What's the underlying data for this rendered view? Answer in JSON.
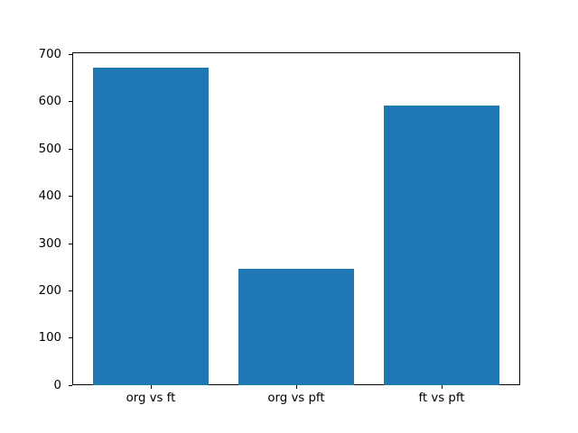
{
  "chart_data": {
    "type": "bar",
    "title": "",
    "xlabel": "",
    "ylabel": "",
    "categories": [
      "org vs ft",
      "org vs pft",
      "ft vs pft"
    ],
    "values": [
      672,
      247,
      593
    ],
    "ylim": [
      0,
      705.6
    ],
    "yticks": [
      0,
      100,
      200,
      300,
      400,
      500,
      600,
      700
    ],
    "grid": false,
    "legend": null,
    "bar_color": "#1f77b4",
    "axis_color": "#000000",
    "background_color": "#ffffff"
  }
}
